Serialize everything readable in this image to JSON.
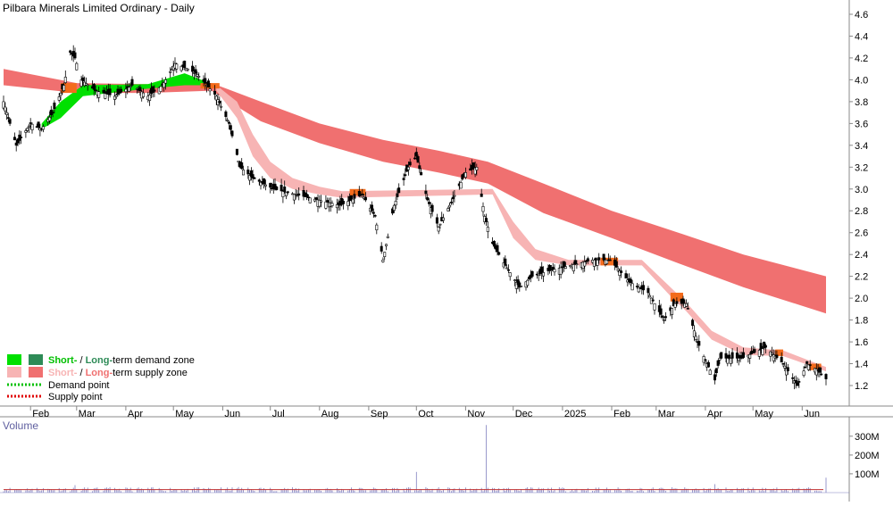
{
  "chart_data": [
    {
      "type": "candlestick",
      "title": "Pilbara Minerals Limited Ordinary - Daily",
      "x_tick_labels": [
        "Feb",
        "Mar",
        "Apr",
        "May",
        "Jun",
        "Jul",
        "Aug",
        "Sep",
        "Oct",
        "Nov",
        "Dec",
        "2025",
        "Feb",
        "Mar",
        "Apr",
        "May",
        "Jun"
      ],
      "y_tick_labels": [
        "1.2",
        "1.4",
        "1.6",
        "1.8",
        "2.0",
        "2.2",
        "2.4",
        "2.6",
        "2.8",
        "3.0",
        "3.2",
        "3.4",
        "3.6",
        "3.8",
        "4.0",
        "4.2",
        "4.4",
        "4.6"
      ],
      "ylim": [
        1.2,
        4.6
      ],
      "grid": false,
      "legend_position": "bottom-left",
      "legend": [
        {
          "short_label": "Short-",
          "separator": " / ",
          "long_label": "Long-",
          "suffix": "term demand zone",
          "short_color": "#00e000",
          "long_color": "#2e8b57"
        },
        {
          "short_label": "Short-",
          "separator": " / ",
          "long_label": "Long-",
          "suffix": "term supply zone",
          "short_color": "#f7b4b4",
          "long_color": "#f07070"
        },
        {
          "label": "Demand point",
          "color": "#00c000"
        },
        {
          "label": "Supply point",
          "color": "#e00000"
        }
      ],
      "colors": {
        "short_supply": "#f7b4b4",
        "long_supply": "#f07070",
        "short_demand": "#00e000",
        "overlap": "#f36b1c",
        "candle": "#000000"
      },
      "price_path": {
        "dates": [
          "2024-01-15",
          "2024-01-23",
          "2024-02-01",
          "2024-02-08",
          "2024-02-15",
          "2024-02-22",
          "2024-02-26",
          "2024-02-29",
          "2024-03-04",
          "2024-03-13",
          "2024-03-25",
          "2024-04-05",
          "2024-04-15",
          "2024-04-24",
          "2024-05-02",
          "2024-05-10",
          "2024-05-16",
          "2024-05-22",
          "2024-05-28",
          "2024-06-05",
          "2024-06-12",
          "2024-06-20",
          "2024-07-03",
          "2024-07-17",
          "2024-07-31",
          "2024-08-14",
          "2024-08-28",
          "2024-09-05",
          "2024-09-10",
          "2024-09-17",
          "2024-09-26",
          "2024-10-01",
          "2024-10-08",
          "2024-10-15",
          "2024-10-22",
          "2024-11-01",
          "2024-11-08",
          "2024-11-13",
          "2024-11-18",
          "2024-11-26",
          "2024-12-05",
          "2024-12-13",
          "2024-12-23",
          "2025-01-06",
          "2025-01-20",
          "2025-01-31",
          "2025-02-12",
          "2025-02-24",
          "2025-03-06",
          "2025-03-13",
          "2025-03-20",
          "2025-03-27",
          "2025-04-02",
          "2025-04-07",
          "2025-04-10",
          "2025-04-24",
          "2025-05-09",
          "2025-05-20",
          "2025-05-29",
          "2025-06-04",
          "2025-06-10",
          "2025-06-16"
        ],
        "close": [
          3.8,
          3.4,
          3.6,
          3.55,
          3.7,
          3.95,
          4.25,
          4.2,
          4.0,
          3.9,
          3.85,
          3.95,
          3.85,
          3.95,
          4.15,
          4.1,
          4.05,
          3.95,
          3.85,
          3.6,
          3.2,
          3.1,
          3.0,
          2.95,
          2.9,
          2.85,
          2.95,
          2.75,
          2.35,
          2.85,
          3.2,
          3.3,
          2.9,
          2.65,
          2.85,
          3.15,
          3.2,
          2.75,
          2.5,
          2.3,
          2.1,
          2.2,
          2.25,
          2.3,
          2.35,
          2.35,
          2.15,
          2.05,
          1.8,
          1.95,
          1.95,
          1.6,
          1.4,
          1.25,
          1.45,
          1.45,
          1.55,
          1.4,
          1.2,
          1.4,
          1.35,
          1.26
        ]
      },
      "long_term_supply_zone": {
        "dates": [
          "2024-01-15",
          "2024-03-01",
          "2024-04-15",
          "2024-05-25",
          "2024-06-25",
          "2024-08-01",
          "2024-09-10",
          "2024-10-15",
          "2024-11-15",
          "2024-12-20",
          "2025-02-01",
          "2025-03-15",
          "2025-04-25",
          "2025-06-16"
        ],
        "upper": [
          4.1,
          3.97,
          3.96,
          3.97,
          3.8,
          3.6,
          3.45,
          3.35,
          3.25,
          3.05,
          2.8,
          2.6,
          2.4,
          2.2
        ],
        "lower": [
          3.95,
          3.88,
          3.88,
          3.9,
          3.62,
          3.42,
          3.25,
          3.15,
          3.05,
          2.78,
          2.55,
          2.32,
          2.1,
          1.86
        ]
      },
      "short_term_supply_zone": {
        "dates": [
          "2024-05-28",
          "2024-06-10",
          "2024-06-20",
          "2024-07-01",
          "2024-07-15",
          "2024-08-01",
          "2024-08-15",
          "2024-11-18",
          "2024-12-01",
          "2024-12-15",
          "2025-01-05",
          "2025-02-20",
          "2025-03-10",
          "2025-03-20",
          "2025-04-05",
          "2025-04-25",
          "2025-05-20",
          "2025-06-16"
        ],
        "upper": [
          3.95,
          3.8,
          3.5,
          3.25,
          3.1,
          3.02,
          2.98,
          3.0,
          2.7,
          2.45,
          2.35,
          2.35,
          2.1,
          1.96,
          1.7,
          1.55,
          1.52,
          1.37
        ],
        "lower": [
          3.9,
          3.65,
          3.3,
          3.1,
          3.0,
          2.95,
          2.92,
          2.95,
          2.55,
          2.35,
          2.3,
          2.3,
          2.02,
          1.88,
          1.62,
          1.48,
          1.47,
          1.33
        ]
      },
      "short_term_demand_zone": {
        "dates": [
          "2024-02-08",
          "2024-02-20",
          "2024-03-05",
          "2024-04-15",
          "2024-05-08",
          "2024-05-22"
        ],
        "upper": [
          3.6,
          3.8,
          3.95,
          3.96,
          4.06,
          3.98
        ],
        "lower": [
          3.55,
          3.65,
          3.85,
          3.92,
          3.95,
          3.95
        ]
      },
      "overlap_segments": [
        {
          "start": "2024-02-20",
          "end": "2024-03-01",
          "upper": 3.97,
          "lower": 3.88
        },
        {
          "start": "2024-05-18",
          "end": "2024-05-30",
          "upper": 3.97,
          "lower": 3.92
        },
        {
          "start": "2024-08-20",
          "end": "2024-08-30",
          "upper": 3.0,
          "lower": 2.94
        },
        {
          "start": "2025-01-25",
          "end": "2025-02-05",
          "upper": 2.37,
          "lower": 2.3
        },
        {
          "start": "2025-03-10",
          "end": "2025-03-18",
          "upper": 2.05,
          "lower": 1.97
        },
        {
          "start": "2025-05-15",
          "end": "2025-05-20",
          "upper": 1.53,
          "lower": 1.47
        },
        {
          "start": "2025-06-05",
          "end": "2025-06-13",
          "upper": 1.4,
          "lower": 1.34
        }
      ],
      "volume_ticks_display": [
        "300M",
        "200M",
        "100M"
      ]
    },
    {
      "type": "bar",
      "title": "Volume",
      "y_tick_labels": [
        "300M",
        "200M",
        "100M"
      ],
      "ylim": [
        0,
        380
      ],
      "unit": "M",
      "baseline_volume": 18,
      "spikes": [
        {
          "date": "2024-02-29",
          "value": 40
        },
        {
          "date": "2024-06-11",
          "value": 30
        },
        {
          "date": "2024-10-01",
          "value": 110
        },
        {
          "date": "2024-11-14",
          "value": 360
        },
        {
          "date": "2025-04-07",
          "value": 45
        },
        {
          "date": "2025-06-16",
          "value": 80
        }
      ]
    }
  ]
}
